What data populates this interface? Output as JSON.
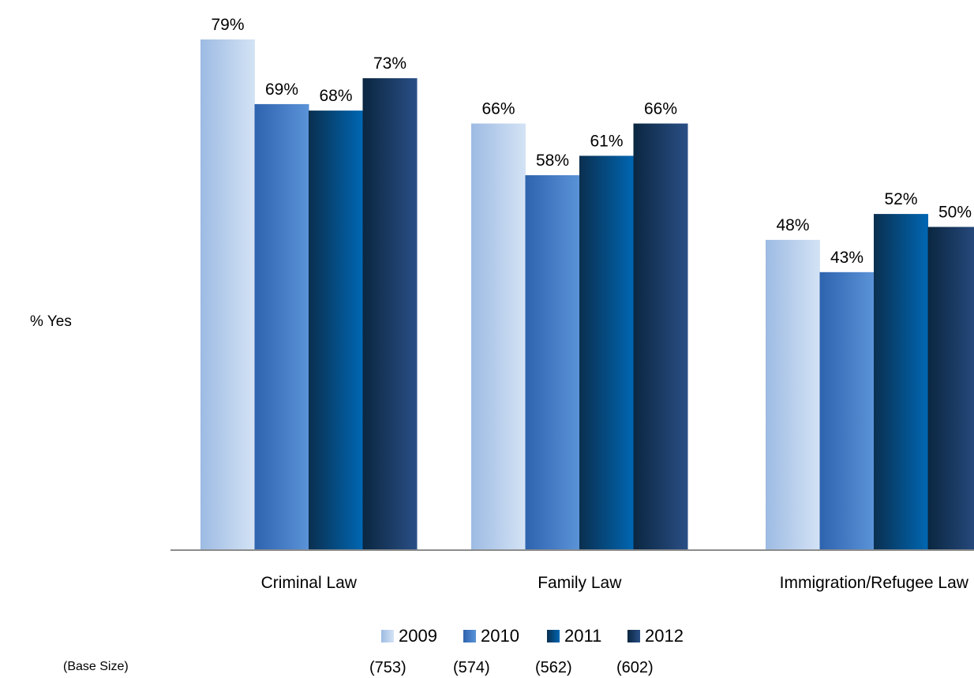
{
  "chart_data": {
    "type": "bar",
    "ylabel": "% Yes",
    "xlabel": "",
    "ylim": [
      0,
      79
    ],
    "categories": [
      "Criminal Law",
      "Family Law",
      "Immigration/Refugee Law"
    ],
    "series": [
      {
        "name": "2009",
        "values": [
          79,
          66,
          48
        ],
        "labels": [
          "79%",
          "66%",
          "48%"
        ],
        "base_size": "(753)",
        "gradient": [
          "#9dbbe3",
          "#d4e3f5"
        ]
      },
      {
        "name": "2010",
        "values": [
          69,
          58,
          43
        ],
        "labels": [
          "69%",
          "58%",
          "43%"
        ],
        "base_size": "(574)",
        "gradient": [
          "#2e63ae",
          "#5b93d8"
        ]
      },
      {
        "name": "2011",
        "values": [
          68,
          61,
          52
        ],
        "labels": [
          "68%",
          "61%",
          "52%"
        ],
        "base_size": "(562)",
        "gradient": [
          "#0a2f4f",
          "#0067b3"
        ]
      },
      {
        "name": "2012",
        "values": [
          73,
          66,
          50
        ],
        "labels": [
          "73%",
          "66%",
          "50%"
        ],
        "base_size": "(602)",
        "gradient": [
          "#0a2640",
          "#2a4f86"
        ]
      }
    ],
    "base_size_label": "(Base Size)",
    "grid": false,
    "legend_position": "bottom"
  }
}
